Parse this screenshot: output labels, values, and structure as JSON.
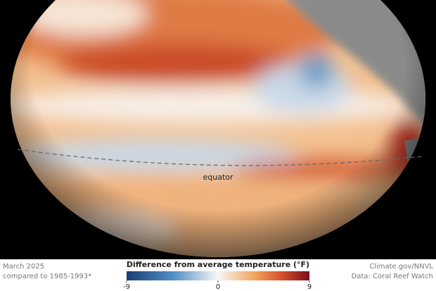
{
  "map": {
    "equator_label": "equator"
  },
  "footer": {
    "date": "March 2025",
    "baseline": "compared to 1985-1993*",
    "credit": "Climate.gov/NNVL",
    "source": "Data: Coral Reef Watch"
  },
  "legend": {
    "title": "Difference from average temperature (°F)",
    "range": [
      -9,
      9
    ],
    "ticks": [
      -9,
      0,
      9
    ]
  }
}
